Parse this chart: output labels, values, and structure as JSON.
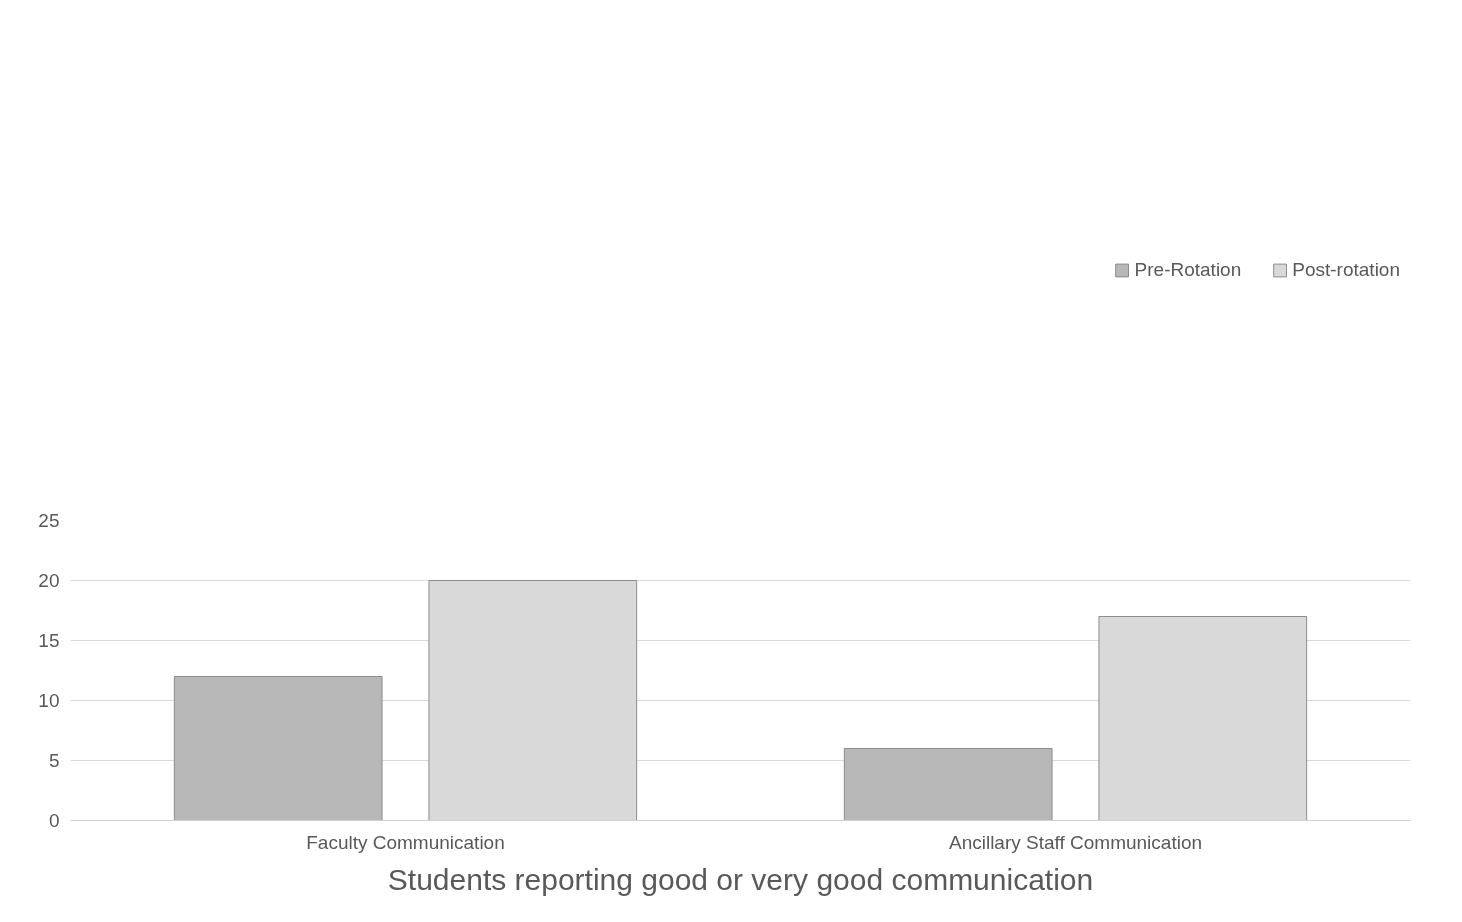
{
  "chart_data": {
    "type": "bar",
    "title": "Students reporting good or very good communication",
    "categories": [
      "Faculty Communication",
      "Ancillary Staff Communication"
    ],
    "series": [
      {
        "name": "Pre-Rotation",
        "color": "#b8b8b8",
        "values": [
          12,
          6
        ]
      },
      {
        "name": "Post-rotation",
        "color": "#d9d9d9",
        "values": [
          20,
          17
        ]
      }
    ],
    "ylim": [
      0,
      25
    ],
    "yticks": [
      0,
      5,
      10,
      15,
      20,
      25
    ],
    "grid": "y",
    "legend": "top right"
  }
}
